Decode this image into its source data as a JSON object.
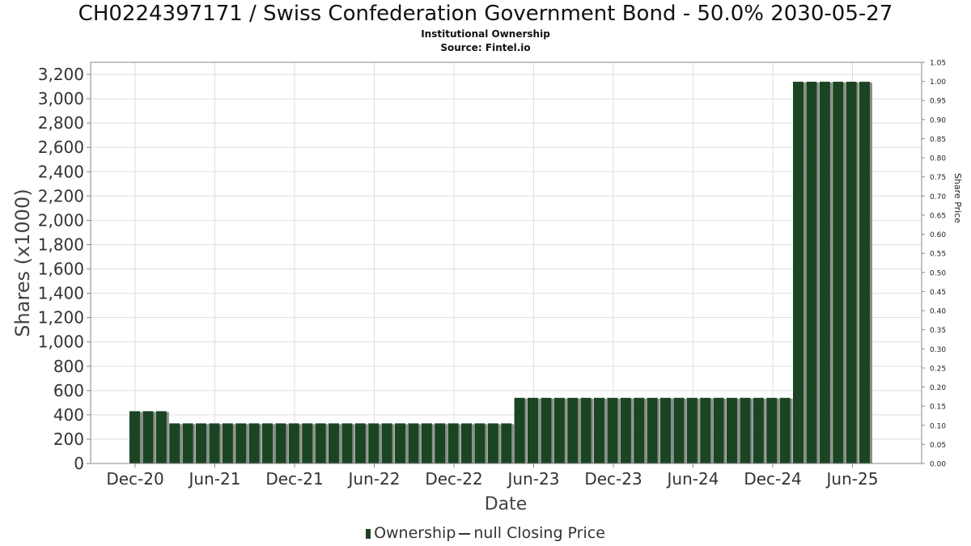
{
  "title": "CH0224397171 / Swiss Confederation Government Bond - 50.0% 2030-05-27",
  "subtitle1": "Institutional Ownership",
  "subtitle2": "Source: Fintel.io",
  "legend": {
    "ownership": "Ownership",
    "closing_price": "null Closing Price"
  },
  "colors": {
    "bar": "#1b4423",
    "bar_shadow": "#8a8f8a",
    "grid": "#dddddd",
    "axis": "#888888"
  },
  "chart_data": {
    "type": "bar",
    "title": "CH0224397171 / Swiss Confederation Government Bond - 50.0% 2030-05-27",
    "xlabel": "Date",
    "ylabel": "Shares (x1000)",
    "y2label": "Share Price",
    "ylim": [
      0,
      3300
    ],
    "y2lim": [
      0,
      1.05
    ],
    "yticks": [
      0,
      200,
      400,
      600,
      800,
      1000,
      1200,
      1400,
      1600,
      1800,
      2000,
      2200,
      2400,
      2600,
      2800,
      3000,
      3200
    ],
    "ytick_labels": [
      "0",
      "200",
      "400",
      "600",
      "800",
      "1,000",
      "1,200",
      "1,400",
      "1,600",
      "1,800",
      "2,000",
      "2,200",
      "2,400",
      "2,600",
      "2,800",
      "3,000",
      "3,200"
    ],
    "y2ticks": [
      "0.00",
      "0.05",
      "0.10",
      "0.15",
      "0.20",
      "0.25",
      "0.30",
      "0.35",
      "0.40",
      "0.45",
      "0.50",
      "0.55",
      "0.60",
      "0.65",
      "0.70",
      "0.75",
      "0.80",
      "0.85",
      "0.90",
      "0.95",
      "1.00",
      "1.05"
    ],
    "xticks": [
      "Dec-20",
      "Jun-21",
      "Dec-21",
      "Jun-22",
      "Dec-22",
      "Jun-23",
      "Dec-23",
      "Jun-24",
      "Dec-24",
      "Jun-25"
    ],
    "grid": true,
    "legend_position": "bottom",
    "series": [
      {
        "name": "Ownership",
        "values": [
          430,
          430,
          430,
          330,
          330,
          330,
          330,
          330,
          330,
          330,
          330,
          330,
          330,
          330,
          330,
          330,
          330,
          330,
          330,
          330,
          330,
          330,
          330,
          330,
          330,
          330,
          330,
          330,
          330,
          540,
          540,
          540,
          540,
          540,
          540,
          540,
          540,
          540,
          540,
          540,
          540,
          540,
          540,
          540,
          540,
          540,
          540,
          540,
          540,
          540,
          3140,
          3140,
          3140,
          3140,
          3140,
          3140
        ]
      }
    ]
  }
}
